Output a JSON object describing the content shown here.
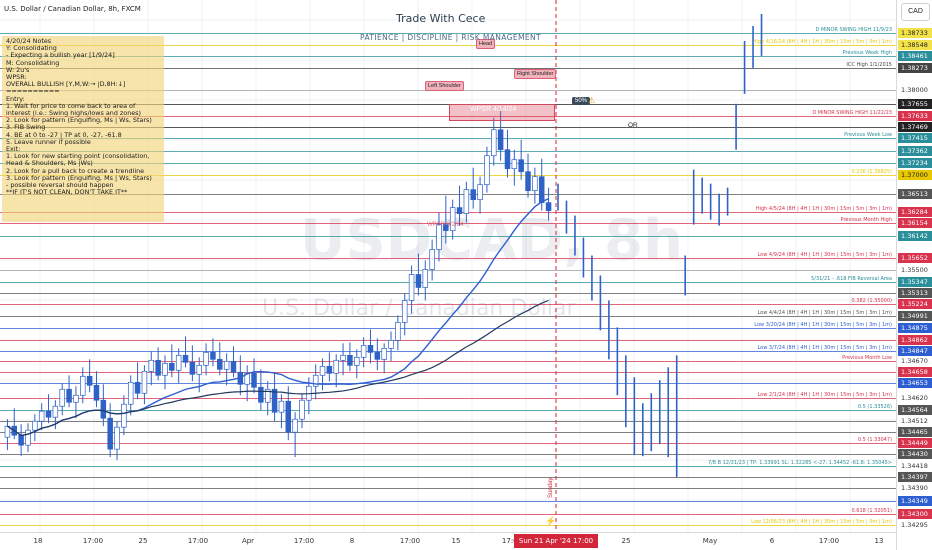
{
  "header": {
    "symbol_title": "U.S. Dollar / Canadian Dollar, 8h, FXCM",
    "brand": "Trade With Cece",
    "motto": "PATIENCE | DISCIPLINE | RISK MANAGEMENT",
    "currency_button": "CAD"
  },
  "watermark": {
    "symbol": "USDCAD, 8h",
    "description": "U.S. Dollar / Canadian Dollar"
  },
  "notes": {
    "lines": [
      "4/20/24 Notes",
      "Y: Consolidating",
      "   - Expecting a bullish year [1/9/24]",
      "M: Consolidating",
      "W: 2u's",
      "WPSR:",
      "OVERALL BULLISH [Y,M,W:→ |D,8H:↓]",
      "==========",
      "Entry:",
      "1. Wait for price to come back to area of",
      "   interest (i.e.: Swing highs/lows and zones)",
      "2. Look for pattern (Engulfing, Ms | Ws, Stars)",
      "3. FIB Swing",
      "4. BE at 0 to -27 | TP at 0, -27, -61.8",
      "5. Leave runner if possible",
      "Exit:",
      "1. Look for new starting point (consolidation,",
      "   Head & Shoulders, Ms |Ws)",
      "2. Look for a pull back to create a trendline",
      "3. Look for pattern (Engulfing, Ms | Ws, Stars)",
      "   - possible reversal should happen",
      "   **IF IT'S NOT CLEAN, DON'T TAKE IT**"
    ]
  },
  "pattern_labels": {
    "head": "Head",
    "left_shoulder": "Left Shoulder",
    "right_shoulder": "Right Shoulder",
    "wpsr": "WPSR 4/14/24",
    "wpsr2": "WPSR 3/2/24",
    "badge": "50%",
    "or_label": "OR",
    "sunday": "Sunday"
  },
  "colors": {
    "grid": "#eef1f4",
    "candle_up": "#2f62c7",
    "candle_down": "#2f62c7",
    "level_yellow": "#e8c800",
    "level_red": "#d8324c",
    "level_teal": "#2a8f9a",
    "ma_blue": "#2d5fd1",
    "ma_navy": "#23395d",
    "cursor_red": "#d3263a"
  },
  "levels": [
    {
      "label": "D MINOR SWING HIGH 11/9/23",
      "price_tag": "1.38733",
      "color": "#2a8f9a",
      "tag_bg": "#f4e24a",
      "tag_fg": "#222"
    },
    {
      "label": "High 4/16/24 (8H | 4H | 1H | 30m | 15m | 5m | 3m | 1m)",
      "price_tag": "1.38548",
      "color": "#e8c800",
      "tag_bg": "#f4e24a",
      "tag_fg": "#222"
    },
    {
      "label": "Previous Week High",
      "price_tag": "1.38461",
      "color": "#2a8f9a",
      "tag_bg": "#2a8f9a",
      "tag_fg": "#fff"
    },
    {
      "label": "ICC High 1/1/2015",
      "price_tag": "1.38273",
      "color": "#444",
      "tag_bg": "#444",
      "tag_fg": "#fff"
    },
    {
      "label": "",
      "price_tag": "1.38000",
      "color": "#999",
      "tag_bg": "#fff",
      "tag_fg": "#333"
    },
    {
      "label": "",
      "price_tag": "1.37655",
      "color": "#222",
      "tag_bg": "#222",
      "tag_fg": "#fff"
    },
    {
      "label": "D MINOR SWING HIGH 11/22/23",
      "price_tag": "1.37633",
      "color": "#d8324c",
      "tag_bg": "#d8324c",
      "tag_fg": "#fff"
    },
    {
      "label": "",
      "price_tag": "1.37469",
      "color": "#222",
      "tag_bg": "#222",
      "tag_fg": "#fff"
    },
    {
      "label": "Previous Week Low",
      "price_tag": "1.37415",
      "color": "#2a8f9a",
      "tag_bg": "#2a8f9a",
      "tag_fg": "#fff"
    },
    {
      "label": "",
      "price_tag": "1.37362",
      "color": "#2a8f9a",
      "tag_bg": "#2a8f9a",
      "tag_fg": "#fff"
    },
    {
      "label": "",
      "price_tag": "1.37234",
      "color": "#2a8f9a",
      "tag_bg": "#2a8f9a",
      "tag_fg": "#fff"
    },
    {
      "label": "0.236 (1.36825)",
      "price_tag": "1.37000",
      "color": "#e8c800",
      "tag_bg": "#e8c800",
      "tag_fg": "#222"
    },
    {
      "label": "",
      "price_tag": "1.36513",
      "color": "#555",
      "tag_bg": "#555",
      "tag_fg": "#fff"
    },
    {
      "label": "High 4/5/24 (8H | 4H | 1H | 30m | 15m | 5m | 3m | 1m)",
      "price_tag": "1.36284",
      "color": "#d8324c",
      "tag_bg": "#d8324c",
      "tag_fg": "#fff"
    },
    {
      "label": "Previous Month High",
      "price_tag": "1.36154",
      "color": "#d8324c",
      "tag_bg": "#d8324c",
      "tag_fg": "#fff"
    },
    {
      "label": "",
      "price_tag": "1.36142",
      "color": "#2a8f9a",
      "tag_bg": "#2a8f9a",
      "tag_fg": "#fff"
    },
    {
      "label": "Low 4/9/24 (8H | 4H | 1H | 30m | 15m | 5m | 3m | 1m)",
      "price_tag": "1.35652",
      "color": "#d8324c",
      "tag_bg": "#d8324c",
      "tag_fg": "#fff"
    },
    {
      "label": "",
      "price_tag": "1.35500",
      "color": "#999",
      "tag_bg": "#fff",
      "tag_fg": "#333"
    },
    {
      "label": "5/31/21 - .618 FIB Reversal Area",
      "price_tag": "1.35347",
      "color": "#2a8f9a",
      "tag_bg": "#2a8f9a",
      "tag_fg": "#fff"
    },
    {
      "label": "",
      "price_tag": "1.35313",
      "color": "#555",
      "tag_bg": "#555",
      "tag_fg": "#fff"
    },
    {
      "label": "0.382 (1.35000)",
      "price_tag": "1.35224",
      "color": "#d8324c",
      "tag_bg": "#d8324c",
      "tag_fg": "#fff"
    },
    {
      "label": "Low 4/4/24 (8H | 4H | 1H | 30m | 15m | 5m | 3m | 1m)",
      "price_tag": "1.34991",
      "color": "#555",
      "tag_bg": "#555",
      "tag_fg": "#fff"
    },
    {
      "label": "Low 3/20/24 (8H | 4H | 1H | 30m | 15m | 5m | 3m | 1m)",
      "price_tag": "1.34875",
      "color": "#2d5fd1",
      "tag_bg": "#2d5fd1",
      "tag_fg": "#fff"
    },
    {
      "label": "",
      "price_tag": "1.34862",
      "color": "#d8324c",
      "tag_bg": "#d8324c",
      "tag_fg": "#fff"
    },
    {
      "label": "Low 3/7/24 (8H | 4H | 1H | 30m | 15m | 5m | 3m | 1m)",
      "price_tag": "1.34847",
      "color": "#2d5fd1",
      "tag_bg": "#2d5fd1",
      "tag_fg": "#fff"
    },
    {
      "label": "Previous Month Low",
      "price_tag": "1.34670",
      "color": "#d8324c",
      "tag_bg": "#fff",
      "tag_fg": "#333"
    },
    {
      "label": "",
      "price_tag": "1.34658",
      "color": "#d8324c",
      "tag_bg": "#d8324c",
      "tag_fg": "#fff"
    },
    {
      "label": "",
      "price_tag": "1.34653",
      "color": "#2d5fd1",
      "tag_bg": "#2d5fd1",
      "tag_fg": "#fff"
    },
    {
      "label": "Low 2/1/24 (8H | 4H | 1H | 30m | 15m | 5m | 3m | 1m)",
      "price_tag": "1.34620",
      "color": "#d8324c",
      "tag_bg": "#fff",
      "tag_fg": "#333"
    },
    {
      "label": "0.5 (1.33526)",
      "price_tag": "1.34564",
      "color": "#2a8f9a",
      "tag_bg": "#555",
      "tag_fg": "#fff"
    },
    {
      "label": "",
      "price_tag": "1.34512",
      "color": "#555",
      "tag_bg": "#fff",
      "tag_fg": "#333"
    },
    {
      "label": "",
      "price_tag": "1.34465",
      "color": "#555",
      "tag_bg": "#555",
      "tag_fg": "#fff"
    },
    {
      "label": "0.5 (1.33047)",
      "price_tag": "1.34449",
      "color": "#d8324c",
      "tag_bg": "#d8324c",
      "tag_fg": "#fff"
    },
    {
      "label": "",
      "price_tag": "1.34430",
      "color": "#555",
      "tag_bg": "#555",
      "tag_fg": "#fff"
    },
    {
      "label": "7/8 B 12/31/23 | TP: 1.33991 SL: 1.32285 <-27: 1.34452 -61.8: 1.35045>",
      "price_tag": "1.34418",
      "color": "#2a8f9a",
      "tag_bg": "#fff",
      "tag_fg": "#333"
    },
    {
      "label": "",
      "price_tag": "1.34397",
      "color": "#555",
      "tag_bg": "#555",
      "tag_fg": "#fff"
    },
    {
      "label": "",
      "price_tag": "1.34390",
      "color": "#555",
      "tag_bg": "#fff",
      "tag_fg": "#333"
    },
    {
      "label": "",
      "price_tag": "1.34349",
      "color": "#2d5fd1",
      "tag_bg": "#2d5fd1",
      "tag_fg": "#fff"
    },
    {
      "label": "0.618 (1.32051)",
      "price_tag": "1.34300",
      "color": "#d8324c",
      "tag_bg": "#d8324c",
      "tag_fg": "#fff"
    },
    {
      "label": "Low 12/06/23 (8H | 4H | 1H | 30m | 15m | 5m | 3m | 1m)",
      "price_tag": "1.34295",
      "color": "#e8c800",
      "tag_bg": "#fff",
      "tag_fg": "#333"
    }
  ],
  "time_axis": {
    "ticks": [
      "18",
      "17:00",
      "25",
      "17:00",
      "Apr",
      "17:00",
      "8",
      "17:00",
      "15",
      "17:00",
      "25",
      "May",
      "6",
      "17:00",
      "13"
    ],
    "cursor_label": "Sun 21 Apr '24  17:00"
  },
  "candles": [
    {
      "o": 1.3518,
      "h": 1.3536,
      "l": 1.3505,
      "c": 1.3529
    },
    {
      "o": 1.3529,
      "h": 1.3547,
      "l": 1.3516,
      "c": 1.352
    },
    {
      "o": 1.352,
      "h": 1.3531,
      "l": 1.3499,
      "c": 1.351
    },
    {
      "o": 1.351,
      "h": 1.3532,
      "l": 1.3503,
      "c": 1.3525
    },
    {
      "o": 1.3525,
      "h": 1.3541,
      "l": 1.3514,
      "c": 1.3534
    },
    {
      "o": 1.3534,
      "h": 1.3552,
      "l": 1.3525,
      "c": 1.3544
    },
    {
      "o": 1.3544,
      "h": 1.3561,
      "l": 1.3532,
      "c": 1.3538
    },
    {
      "o": 1.3538,
      "h": 1.3555,
      "l": 1.3526,
      "c": 1.3549
    },
    {
      "o": 1.3549,
      "h": 1.3572,
      "l": 1.354,
      "c": 1.3566
    },
    {
      "o": 1.3566,
      "h": 1.358,
      "l": 1.3548,
      "c": 1.3553
    },
    {
      "o": 1.3553,
      "h": 1.3569,
      "l": 1.3537,
      "c": 1.356
    },
    {
      "o": 1.356,
      "h": 1.3588,
      "l": 1.3552,
      "c": 1.3579
    },
    {
      "o": 1.3579,
      "h": 1.3596,
      "l": 1.3563,
      "c": 1.357
    },
    {
      "o": 1.357,
      "h": 1.3584,
      "l": 1.3548,
      "c": 1.3555
    },
    {
      "o": 1.3555,
      "h": 1.3571,
      "l": 1.3529,
      "c": 1.3537
    },
    {
      "o": 1.3537,
      "h": 1.3552,
      "l": 1.3498,
      "c": 1.3506
    },
    {
      "o": 1.3506,
      "h": 1.3534,
      "l": 1.3495,
      "c": 1.3528
    },
    {
      "o": 1.3528,
      "h": 1.356,
      "l": 1.352,
      "c": 1.3551
    },
    {
      "o": 1.3551,
      "h": 1.358,
      "l": 1.354,
      "c": 1.3573
    },
    {
      "o": 1.3573,
      "h": 1.3593,
      "l": 1.3556,
      "c": 1.3562
    },
    {
      "o": 1.3562,
      "h": 1.359,
      "l": 1.3551,
      "c": 1.3584
    },
    {
      "o": 1.3584,
      "h": 1.3604,
      "l": 1.357,
      "c": 1.3595
    },
    {
      "o": 1.3595,
      "h": 1.3608,
      "l": 1.3575,
      "c": 1.358
    },
    {
      "o": 1.358,
      "h": 1.36,
      "l": 1.3566,
      "c": 1.3592
    },
    {
      "o": 1.3592,
      "h": 1.3611,
      "l": 1.3578,
      "c": 1.3585
    },
    {
      "o": 1.3585,
      "h": 1.3607,
      "l": 1.3572,
      "c": 1.36
    },
    {
      "o": 1.36,
      "h": 1.3619,
      "l": 1.3588,
      "c": 1.3593
    },
    {
      "o": 1.3593,
      "h": 1.361,
      "l": 1.3574,
      "c": 1.3581
    },
    {
      "o": 1.3581,
      "h": 1.3598,
      "l": 1.3563,
      "c": 1.359
    },
    {
      "o": 1.359,
      "h": 1.3612,
      "l": 1.358,
      "c": 1.3603
    },
    {
      "o": 1.3603,
      "h": 1.3617,
      "l": 1.3589,
      "c": 1.3596
    },
    {
      "o": 1.3596,
      "h": 1.3613,
      "l": 1.358,
      "c": 1.3586
    },
    {
      "o": 1.3586,
      "h": 1.3602,
      "l": 1.357,
      "c": 1.3594
    },
    {
      "o": 1.3594,
      "h": 1.3609,
      "l": 1.3578,
      "c": 1.3583
    },
    {
      "o": 1.3583,
      "h": 1.36,
      "l": 1.356,
      "c": 1.3571
    },
    {
      "o": 1.3571,
      "h": 1.359,
      "l": 1.3554,
      "c": 1.3582
    },
    {
      "o": 1.3582,
      "h": 1.3597,
      "l": 1.3562,
      "c": 1.3568
    },
    {
      "o": 1.3568,
      "h": 1.3586,
      "l": 1.3545,
      "c": 1.3553
    },
    {
      "o": 1.3553,
      "h": 1.3574,
      "l": 1.354,
      "c": 1.3566
    },
    {
      "o": 1.3566,
      "h": 1.3582,
      "l": 1.3534,
      "c": 1.3543
    },
    {
      "o": 1.3543,
      "h": 1.3561,
      "l": 1.3527,
      "c": 1.3554
    },
    {
      "o": 1.3554,
      "h": 1.3569,
      "l": 1.3515,
      "c": 1.3523
    },
    {
      "o": 1.3523,
      "h": 1.3543,
      "l": 1.3498,
      "c": 1.3536
    },
    {
      "o": 1.3536,
      "h": 1.3561,
      "l": 1.3527,
      "c": 1.3555
    },
    {
      "o": 1.3555,
      "h": 1.3578,
      "l": 1.3541,
      "c": 1.3569
    },
    {
      "o": 1.3569,
      "h": 1.3591,
      "l": 1.3556,
      "c": 1.358
    },
    {
      "o": 1.358,
      "h": 1.3597,
      "l": 1.3565,
      "c": 1.3589
    },
    {
      "o": 1.3589,
      "h": 1.3603,
      "l": 1.3574,
      "c": 1.3582
    },
    {
      "o": 1.3582,
      "h": 1.3601,
      "l": 1.3568,
      "c": 1.3595
    },
    {
      "o": 1.3595,
      "h": 1.3612,
      "l": 1.358,
      "c": 1.36
    },
    {
      "o": 1.36,
      "h": 1.3613,
      "l": 1.3584,
      "c": 1.359
    },
    {
      "o": 1.359,
      "h": 1.3606,
      "l": 1.3577,
      "c": 1.3598
    },
    {
      "o": 1.3598,
      "h": 1.3618,
      "l": 1.3588,
      "c": 1.361
    },
    {
      "o": 1.361,
      "h": 1.3626,
      "l": 1.3592,
      "c": 1.3603
    },
    {
      "o": 1.3603,
      "h": 1.3617,
      "l": 1.3585,
      "c": 1.3596
    },
    {
      "o": 1.3596,
      "h": 1.3612,
      "l": 1.3582,
      "c": 1.3607
    },
    {
      "o": 1.3607,
      "h": 1.3624,
      "l": 1.3594,
      "c": 1.3615
    },
    {
      "o": 1.3615,
      "h": 1.364,
      "l": 1.3605,
      "c": 1.3633
    },
    {
      "o": 1.3633,
      "h": 1.3662,
      "l": 1.362,
      "c": 1.3655
    },
    {
      "o": 1.3655,
      "h": 1.369,
      "l": 1.3642,
      "c": 1.3681
    },
    {
      "o": 1.3681,
      "h": 1.3702,
      "l": 1.366,
      "c": 1.3668
    },
    {
      "o": 1.3668,
      "h": 1.3695,
      "l": 1.3655,
      "c": 1.3686
    },
    {
      "o": 1.3686,
      "h": 1.3716,
      "l": 1.3675,
      "c": 1.3706
    },
    {
      "o": 1.3706,
      "h": 1.3743,
      "l": 1.3694,
      "c": 1.3731
    },
    {
      "o": 1.3731,
      "h": 1.376,
      "l": 1.3712,
      "c": 1.3725
    },
    {
      "o": 1.3725,
      "h": 1.3756,
      "l": 1.3716,
      "c": 1.3748
    },
    {
      "o": 1.3748,
      "h": 1.377,
      "l": 1.373,
      "c": 1.3742
    },
    {
      "o": 1.3742,
      "h": 1.3774,
      "l": 1.3733,
      "c": 1.3766
    },
    {
      "o": 1.3766,
      "h": 1.3788,
      "l": 1.3747,
      "c": 1.3756
    },
    {
      "o": 1.3756,
      "h": 1.3779,
      "l": 1.3742,
      "c": 1.3771
    },
    {
      "o": 1.3771,
      "h": 1.3809,
      "l": 1.3763,
      "c": 1.38
    },
    {
      "o": 1.38,
      "h": 1.3838,
      "l": 1.379,
      "c": 1.3826
    },
    {
      "o": 1.3826,
      "h": 1.3846,
      "l": 1.3795,
      "c": 1.3806
    },
    {
      "o": 1.3806,
      "h": 1.3826,
      "l": 1.3778,
      "c": 1.3787
    },
    {
      "o": 1.3787,
      "h": 1.3806,
      "l": 1.377,
      "c": 1.3796
    },
    {
      "o": 1.3796,
      "h": 1.3816,
      "l": 1.3776,
      "c": 1.3784
    },
    {
      "o": 1.3784,
      "h": 1.3802,
      "l": 1.3758,
      "c": 1.3765
    },
    {
      "o": 1.3765,
      "h": 1.3788,
      "l": 1.3752,
      "c": 1.3779
    },
    {
      "o": 1.3779,
      "h": 1.3797,
      "l": 1.3745,
      "c": 1.3753
    },
    {
      "o": 1.3753,
      "h": 1.3768,
      "l": 1.3735,
      "c": 1.3745
    }
  ],
  "projection_bars": [
    {
      "h": 1.3772,
      "l": 1.3745
    },
    {
      "h": 1.3755,
      "l": 1.3722
    },
    {
      "h": 1.374,
      "l": 1.37
    },
    {
      "h": 1.3718,
      "l": 1.3678
    },
    {
      "h": 1.37,
      "l": 1.3655
    },
    {
      "h": 1.368,
      "l": 1.3625
    },
    {
      "h": 1.3655,
      "l": 1.3596
    },
    {
      "h": 1.3628,
      "l": 1.356
    },
    {
      "h": 1.36,
      "l": 1.3528
    },
    {
      "h": 1.3578,
      "l": 1.35
    },
    {
      "h": 1.3552,
      "l": 1.3499
    },
    {
      "h": 1.3562,
      "l": 1.3504
    },
    {
      "h": 1.3575,
      "l": 1.3511
    },
    {
      "h": 1.3588,
      "l": 1.3498
    },
    {
      "h": 1.36,
      "l": 1.3478
    },
    {
      "h": 1.37,
      "l": 1.366
    },
    {
      "h": 1.3786,
      "l": 1.3731
    },
    {
      "h": 1.3778,
      "l": 1.3742
    },
    {
      "h": 1.3772,
      "l": 1.3736
    },
    {
      "h": 1.3762,
      "l": 1.373
    },
    {
      "h": 1.3768,
      "l": 1.374
    },
    {
      "h": 1.3852,
      "l": 1.3806
    },
    {
      "h": 1.3915,
      "l": 1.3862
    },
    {
      "h": 1.393,
      "l": 1.3888
    },
    {
      "h": 1.3942,
      "l": 1.39
    }
  ]
}
